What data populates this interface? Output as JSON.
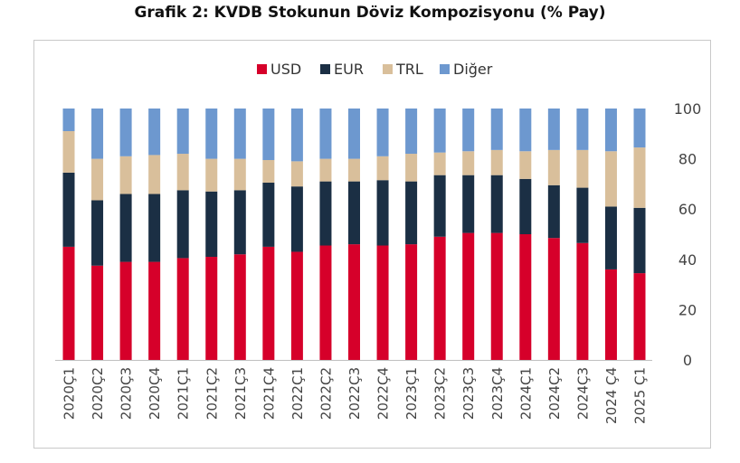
{
  "title": "Grafik 2: KVDB Stokunun Döviz Kompozisyonu (% Pay)",
  "colors": {
    "USD": "#d6002a",
    "EUR": "#1b2f44",
    "TRL": "#d9bf9b",
    "Diğer": "#6d98cf"
  },
  "chart_data": {
    "type": "bar",
    "stacked": true,
    "title": "Grafik 2: KVDB Stokunun Döviz Kompozisyonu (% Pay)",
    "xlabel": "",
    "ylabel": "",
    "ylim": [
      0,
      100
    ],
    "yticks": [
      0,
      20,
      40,
      60,
      80,
      100
    ],
    "y_axis_side": "right",
    "grid": false,
    "legend_position": "top-center",
    "categories": [
      "2020Ç1",
      "2020Ç2",
      "2020Ç3",
      "2020Ç4",
      "2021Ç1",
      "2021Ç2",
      "2021Ç3",
      "2021Ç4",
      "2022Ç1",
      "2022Ç2",
      "2022Ç3",
      "2022Ç4",
      "2023Ç1",
      "2023Ç2",
      "2023Ç3",
      "2023Ç4",
      "2024Ç1",
      "2024Ç2",
      "2024Ç3",
      "2024 Ç4",
      "2025 Ç1"
    ],
    "series": [
      {
        "name": "USD",
        "values": [
          45,
          37.5,
          39,
          39,
          40.5,
          41,
          42,
          45,
          43,
          45.5,
          46,
          45.5,
          46,
          49,
          50.5,
          50.5,
          50,
          48.5,
          46.5,
          36,
          34.5
        ]
      },
      {
        "name": "EUR",
        "values": [
          29.5,
          26,
          27,
          27,
          27,
          26,
          25.5,
          25.5,
          26,
          25.5,
          25,
          26,
          25,
          24.5,
          23,
          23,
          22,
          21,
          22,
          25,
          26
        ]
      },
      {
        "name": "TRL",
        "values": [
          16.5,
          16.5,
          15,
          15.5,
          14.5,
          13,
          12.5,
          9,
          10,
          9,
          9,
          9.5,
          11,
          9,
          9.5,
          10,
          11,
          14,
          15,
          22,
          24
        ]
      },
      {
        "name": "Diğer",
        "values": [
          9,
          20,
          19,
          18.5,
          18,
          20,
          20,
          20.5,
          21,
          20,
          20,
          19,
          18,
          17.5,
          17,
          16.5,
          17,
          16.5,
          16.5,
          17,
          15.5
        ]
      }
    ]
  }
}
